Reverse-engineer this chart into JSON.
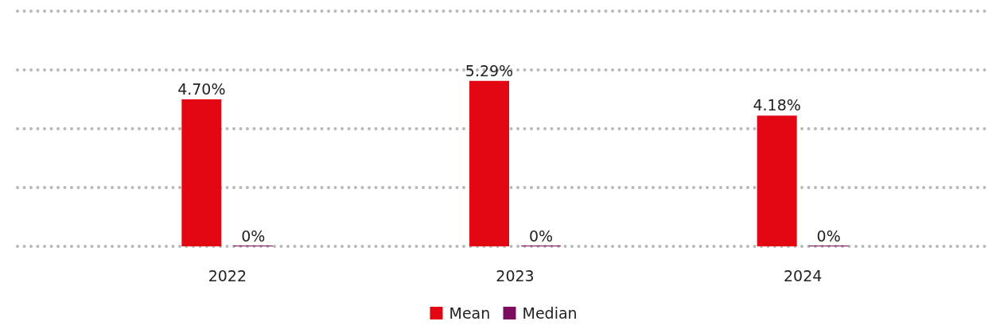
{
  "chart_data": {
    "type": "bar",
    "categories": [
      "2022",
      "2023",
      "2024"
    ],
    "series": [
      {
        "name": "Mean",
        "color": "#e30613",
        "values": [
          4.7,
          5.29,
          4.18
        ],
        "value_labels": [
          "4.70%",
          "5.29%",
          "4.18%"
        ]
      },
      {
        "name": "Median",
        "color": "#7b0c5e",
        "values": [
          0,
          0,
          0
        ],
        "value_labels": [
          "0%",
          "0%",
          "0%"
        ]
      }
    ],
    "ylim": [
      0,
      7.52
    ],
    "yticks": [
      {
        "value": 0,
        "label": null
      },
      {
        "value": 1.88,
        "label": null
      },
      {
        "value": 3.76,
        "label": null
      },
      {
        "value": 5.64,
        "label": null
      },
      {
        "value": 7.52,
        "label": null
      }
    ],
    "grid": true,
    "legend": "bottom",
    "tick_labels": "x"
  }
}
